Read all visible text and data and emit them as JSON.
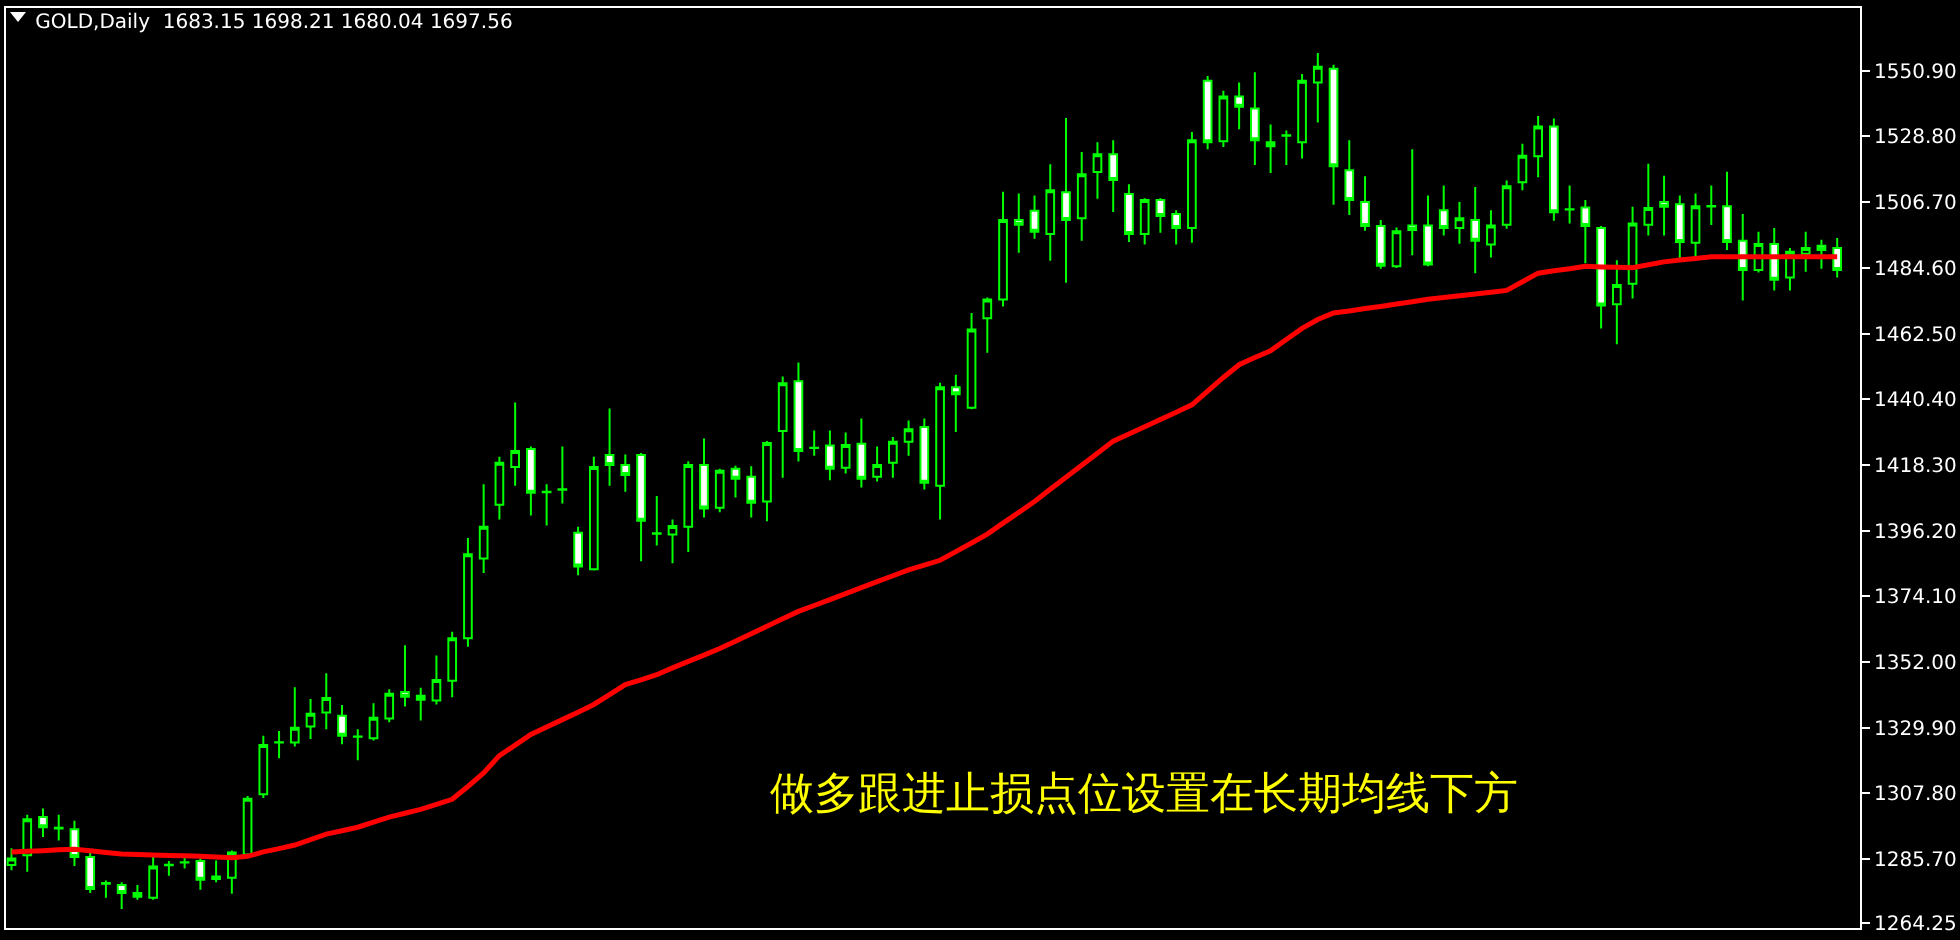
{
  "chart_data": {
    "type": "candlestick",
    "title": "GOLD,Daily  1683.15 1698.21 1680.04 1697.56",
    "annotations": [
      "做多跟进止损点位设置在长期均线下方"
    ],
    "categories": [
      null,
      null,
      null,
      null,
      null,
      null,
      null,
      null,
      null,
      null,
      null,
      null,
      null,
      null,
      null,
      null,
      null,
      null,
      null,
      null,
      null,
      null,
      null,
      null,
      null,
      null,
      null,
      null,
      null,
      null,
      null,
      null,
      null,
      null,
      null,
      null,
      null,
      null,
      null,
      null,
      null,
      null,
      null,
      null,
      null,
      null,
      null,
      null,
      null,
      null,
      null,
      null,
      null,
      null,
      null,
      null,
      null,
      null,
      null,
      null,
      null,
      null,
      null,
      null,
      null,
      null,
      null,
      null,
      null,
      null,
      null,
      null,
      null,
      null,
      null,
      null,
      null,
      null,
      null,
      null,
      null,
      null,
      null,
      null,
      null,
      null,
      null,
      null,
      null,
      null,
      null,
      null,
      null,
      null,
      null,
      null,
      null,
      null,
      null,
      null,
      null,
      null,
      null,
      null,
      null,
      null,
      null,
      null,
      null,
      null,
      null,
      null,
      null,
      null,
      null,
      null,
      null
    ],
    "ylim": [
      1262.5,
      1572
    ],
    "yticks": [
      1264.25,
      {
        "value": 1285.7,
        "label": "1285.70"
      },
      {
        "value": 1307.8,
        "label": "1307.80"
      },
      {
        "value": 1329.9,
        "label": "1329.90"
      },
      {
        "value": 1352,
        "label": "1352.00"
      },
      {
        "value": 1374.1,
        "label": "1374.10"
      },
      {
        "value": 1396.2,
        "label": "1396.20"
      },
      {
        "value": 1418.3,
        "label": "1418.30"
      },
      {
        "value": 1440.4,
        "label": "1440.40"
      },
      {
        "value": 1462.5,
        "label": "1462.50"
      },
      {
        "value": 1484.6,
        "label": "1484.60"
      },
      {
        "value": 1506.7,
        "label": "1506.70"
      },
      {
        "value": 1528.8,
        "label": "1528.80"
      },
      {
        "value": 1550.9,
        "label": "1550.90"
      }
    ],
    "tick_labels": "y",
    "grid": false,
    "series": [
      {
        "type": "line",
        "color": "#ff0000",
        "values": [
          1288.1,
          1288.3,
          1288.5,
          1288.8,
          1289.0,
          1288.5,
          1287.9,
          1287.4,
          1287.2,
          1287.1,
          1286.9,
          1286.8,
          1286.6,
          1286.4,
          1286.1,
          1286.6,
          1288.1,
          1289.2,
          1290.4,
          1292.2,
          1294.1,
          1295.2,
          1296.4,
          1298.1,
          1299.8,
          1301.1,
          1302.4,
          1304.1,
          1305.8,
          1310.1,
          1314.7,
          1320.5,
          1324.0,
          1327.6,
          1330.1,
          1332.6,
          1335.1,
          1337.7,
          1341.0,
          1344.4,
          1346.0,
          1347.7,
          1350.0,
          1352.2,
          1354.3,
          1356.5,
          1359.0,
          1361.5,
          1364.0,
          1366.5,
          1369.0,
          1371.0,
          1373.0,
          1375.0,
          1377.0,
          1379.0,
          1381.0,
          1383.0,
          1384.6,
          1386.2,
          1389.1,
          1392.0,
          1395.0,
          1398.7,
          1402.3,
          1406.0,
          1410.1,
          1414.1,
          1418.2,
          1422.2,
          1426.3,
          1428.7,
          1431.1,
          1433.6,
          1436.0,
          1438.5,
          1443.1,
          1447.7,
          1452.0,
          1454.4,
          1456.7,
          1460.5,
          1464.2,
          1467.2,
          1469.4,
          1470.1,
          1470.9,
          1471.6,
          1472.4,
          1473.2,
          1474.0,
          1474.6,
          1475.2,
          1475.8,
          1476.4,
          1477.0,
          1479.9,
          1482.8,
          1483.6,
          1484.3,
          1485.1,
          1484.9,
          1484.8,
          1484.6,
          1485.6,
          1486.6,
          1487.2,
          1487.7,
          1488.3,
          1488.3,
          1488.3,
          1488.3,
          1488.3,
          1488.3,
          1488.3,
          1488.3,
          1488.3
        ]
      },
      {
        "color": "#00ff00",
        "ohlc": [
          [
            1283.7,
            1289.3,
            1281.9,
            1285.9
          ],
          [
            1287.0,
            1300.6,
            1281.4,
            1299.1
          ],
          [
            1299.8,
            1302.7,
            1293.1,
            1296.4
          ],
          [
            1296.2,
            1300.6,
            1291.9,
            1296.0
          ],
          [
            1295.7,
            1298.6,
            1283.4,
            1286.4
          ],
          [
            1286.4,
            1287.9,
            1274.3,
            1275.6
          ],
          [
            1277.6,
            1278.5,
            1272.7,
            1277.4
          ],
          [
            1277.0,
            1277.9,
            1268.9,
            1274.3
          ],
          [
            1274.3,
            1277.0,
            1272.0,
            1273.0
          ],
          [
            1272.7,
            1287.2,
            1272.0,
            1283.2
          ],
          [
            1283.6,
            1285.0,
            1280.1,
            1283.8
          ],
          [
            1284.5,
            1287.0,
            1282.5,
            1284.6
          ],
          [
            1285.0,
            1286.6,
            1275.4,
            1278.7
          ],
          [
            1279.8,
            1285.2,
            1277.9,
            1279.0
          ],
          [
            1279.4,
            1288.6,
            1274.0,
            1287.9
          ],
          [
            1287.2,
            1306.9,
            1286.8,
            1306.0
          ],
          [
            1307.5,
            1327.2,
            1306.2,
            1324.1
          ],
          [
            1324.9,
            1328.8,
            1319.6,
            1325.0
          ],
          [
            1324.9,
            1343.5,
            1323.6,
            1329.9
          ],
          [
            1330.3,
            1339.5,
            1326.1,
            1334.6
          ],
          [
            1335.0,
            1348.2,
            1329.4,
            1339.9
          ],
          [
            1333.9,
            1337.5,
            1324.3,
            1327.2
          ],
          [
            1326.9,
            1329.4,
            1318.9,
            1326.8
          ],
          [
            1326.3,
            1338.1,
            1325.6,
            1333.2
          ],
          [
            1333.0,
            1342.8,
            1331.7,
            1341.3
          ],
          [
            1341.9,
            1357.6,
            1337.0,
            1340.3
          ],
          [
            1340.6,
            1343.3,
            1332.3,
            1339.3
          ],
          [
            1339.0,
            1354.2,
            1337.7,
            1345.9
          ],
          [
            1345.7,
            1362.2,
            1340.1,
            1360.0
          ],
          [
            1360.0,
            1393.7,
            1357.1,
            1388.2
          ],
          [
            1386.8,
            1411.8,
            1381.9,
            1397.5
          ],
          [
            1404.9,
            1421.0,
            1399.9,
            1419.0
          ],
          [
            1417.6,
            1439.3,
            1411.3,
            1423.0
          ],
          [
            1423.6,
            1424.5,
            1401.3,
            1408.9
          ],
          [
            1409.3,
            1411.8,
            1397.9,
            1409.1
          ],
          [
            1410.1,
            1424.5,
            1405.3,
            1409.9
          ],
          [
            1395.5,
            1397.5,
            1381.2,
            1384.1
          ],
          [
            1383.2,
            1421.0,
            1382.8,
            1417.6
          ],
          [
            1421.6,
            1437.3,
            1411.3,
            1418.3
          ],
          [
            1418.3,
            1421.8,
            1409.3,
            1414.9
          ],
          [
            1421.6,
            1422.3,
            1385.9,
            1399.5
          ],
          [
            1395.3,
            1407.8,
            1391.2,
            1395.1
          ],
          [
            1394.9,
            1399.9,
            1385.2,
            1397.7
          ],
          [
            1397.5,
            1419.5,
            1389.0,
            1418.3
          ],
          [
            1418.3,
            1427.2,
            1400.6,
            1403.6
          ],
          [
            1403.9,
            1417.0,
            1402.4,
            1416.3
          ],
          [
            1417.0,
            1418.0,
            1407.3,
            1413.6
          ],
          [
            1414.3,
            1417.8,
            1400.6,
            1405.6
          ],
          [
            1406.0,
            1426.3,
            1399.3,
            1425.7
          ],
          [
            1429.7,
            1448.0,
            1414.0,
            1445.8
          ],
          [
            1446.4,
            1452.7,
            1419.4,
            1423.0
          ],
          [
            1424.1,
            1429.9,
            1421.4,
            1424.0
          ],
          [
            1424.8,
            1429.9,
            1413.1,
            1417.0
          ],
          [
            1417.3,
            1429.2,
            1415.4,
            1425.0
          ],
          [
            1425.4,
            1433.9,
            1410.7,
            1413.6
          ],
          [
            1414.3,
            1424.5,
            1412.7,
            1418.3
          ],
          [
            1419.0,
            1427.7,
            1414.0,
            1426.1
          ],
          [
            1426.1,
            1433.2,
            1421.4,
            1430.3
          ],
          [
            1431.0,
            1433.9,
            1410.0,
            1412.3
          ],
          [
            1411.3,
            1445.9,
            1399.9,
            1444.4
          ],
          [
            1444.4,
            1448.6,
            1429.4,
            1442.1
          ],
          [
            1437.5,
            1469.4,
            1437.0,
            1463.8
          ],
          [
            1467.6,
            1474.6,
            1456.0,
            1473.9
          ],
          [
            1473.9,
            1510.2,
            1471.6,
            1500.7
          ],
          [
            1500.7,
            1509.6,
            1489.7,
            1499.1
          ],
          [
            1503.8,
            1508.9,
            1494.4,
            1496.7
          ],
          [
            1496.0,
            1519.4,
            1487.0,
            1510.7
          ],
          [
            1510.0,
            1535.0,
            1479.6,
            1500.7
          ],
          [
            1501.3,
            1523.6,
            1493.7,
            1516.1
          ],
          [
            1516.8,
            1526.8,
            1507.8,
            1522.8
          ],
          [
            1522.8,
            1527.5,
            1503.4,
            1514.1
          ],
          [
            1509.4,
            1512.7,
            1493.3,
            1496.0
          ],
          [
            1496.0,
            1508.0,
            1492.4,
            1507.4
          ],
          [
            1507.4,
            1508.0,
            1496.4,
            1502.0
          ],
          [
            1502.7,
            1504.0,
            1492.4,
            1498.0
          ],
          [
            1498.0,
            1530.3,
            1493.0,
            1527.5
          ],
          [
            1547.5,
            1549.1,
            1524.5,
            1526.8
          ],
          [
            1527.2,
            1544.2,
            1525.2,
            1542.2
          ],
          [
            1542.2,
            1546.9,
            1531.2,
            1538.8
          ],
          [
            1538.2,
            1550.4,
            1519.2,
            1527.5
          ],
          [
            1526.8,
            1532.8,
            1516.5,
            1525.5
          ],
          [
            1529.2,
            1530.8,
            1519.2,
            1529.0
          ],
          [
            1526.8,
            1549.8,
            1521.4,
            1547.5
          ],
          [
            1546.9,
            1556.9,
            1533.5,
            1552.2
          ],
          [
            1551.6,
            1552.9,
            1505.8,
            1518.8
          ],
          [
            1517.4,
            1527.5,
            1502.4,
            1507.4
          ],
          [
            1506.7,
            1515.4,
            1497.1,
            1498.7
          ],
          [
            1498.7,
            1500.7,
            1484.3,
            1485.3
          ],
          [
            1485.1,
            1498.2,
            1484.5,
            1496.9
          ],
          [
            1498.8,
            1524.5,
            1488.8,
            1497.3
          ],
          [
            1498.8,
            1508.9,
            1485.1,
            1485.7
          ],
          [
            1504.0,
            1512.3,
            1495.5,
            1498.0
          ],
          [
            1498.0,
            1506.7,
            1492.7,
            1501.3
          ],
          [
            1500.7,
            1511.8,
            1482.8,
            1493.7
          ],
          [
            1492.4,
            1504.0,
            1488.1,
            1498.8
          ],
          [
            1499.1,
            1514.0,
            1497.7,
            1512.0
          ],
          [
            1513.4,
            1526.3,
            1510.7,
            1522.3
          ],
          [
            1522.1,
            1535.7,
            1515.1,
            1532.1
          ],
          [
            1532.1,
            1534.8,
            1500.4,
            1503.3
          ],
          [
            1504.3,
            1512.3,
            1499.5,
            1504.2
          ],
          [
            1504.9,
            1507.4,
            1486.1,
            1498.7
          ],
          [
            1498.0,
            1498.7,
            1464.2,
            1471.9
          ],
          [
            1472.3,
            1487.1,
            1458.9,
            1478.8
          ],
          [
            1479.2,
            1505.1,
            1474.3,
            1499.5
          ],
          [
            1499.1,
            1519.6,
            1495.5,
            1504.7
          ],
          [
            1506.7,
            1515.6,
            1495.5,
            1505.1
          ],
          [
            1506.0,
            1508.9,
            1487.9,
            1493.3
          ],
          [
            1493.0,
            1509.6,
            1487.3,
            1505.3
          ],
          [
            1505.4,
            1512.3,
            1499.0,
            1505.2
          ],
          [
            1505.3,
            1516.9,
            1490.6,
            1493.3
          ],
          [
            1493.7,
            1502.7,
            1473.6,
            1483.9
          ],
          [
            1483.9,
            1496.7,
            1483.0,
            1492.6
          ],
          [
            1492.6,
            1498.0,
            1477.0,
            1480.6
          ],
          [
            1481.3,
            1491.3,
            1477.0,
            1490.0
          ],
          [
            1489.3,
            1496.7,
            1483.3,
            1491.3
          ],
          [
            1492.0,
            1494.0,
            1484.3,
            1490.6
          ],
          [
            1491.3,
            1494.6,
            1481.3,
            1483.9
          ]
        ]
      }
    ]
  }
}
